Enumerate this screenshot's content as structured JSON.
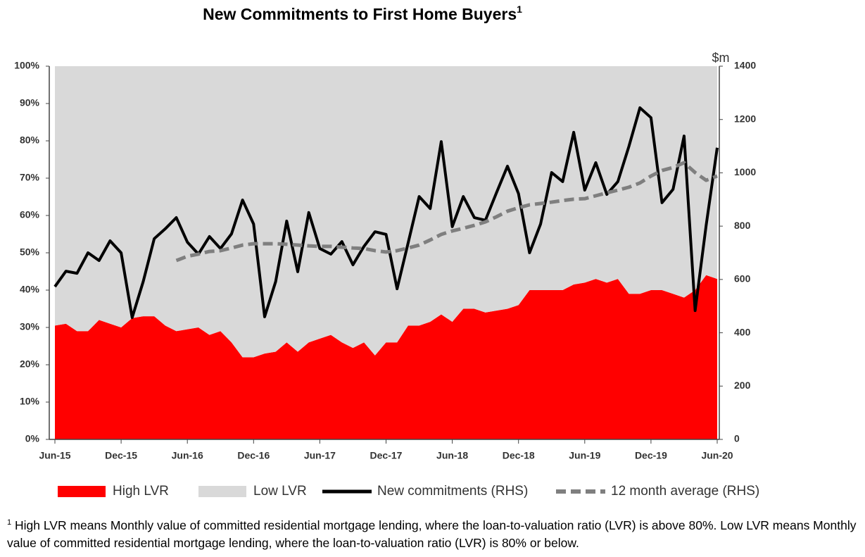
{
  "chart_data": {
    "type": "area-line",
    "title": "New Commitments to First Home Buyers",
    "title_note_mark": "1",
    "y2_label": "$m",
    "categories": [
      "Jun-15",
      null,
      null,
      null,
      null,
      null,
      "Dec-15",
      null,
      null,
      null,
      null,
      null,
      "Jun-16",
      null,
      null,
      null,
      null,
      null,
      "Dec-16",
      null,
      null,
      null,
      null,
      null,
      "Jun-17",
      null,
      null,
      null,
      null,
      null,
      "Dec-17",
      null,
      null,
      null,
      null,
      null,
      "Jun-18",
      null,
      null,
      null,
      null,
      null,
      "Dec-18",
      null,
      null,
      null,
      null,
      null,
      "Jun-19",
      null,
      null,
      null,
      null,
      null,
      "Dec-19",
      null,
      null,
      null,
      null,
      null,
      "Jun-20"
    ],
    "series": [
      {
        "name": "High LVR",
        "kind": "area",
        "color": "#ff0000",
        "values": [
          30.5,
          31,
          29,
          29,
          32,
          31,
          30,
          32.5,
          33,
          33,
          30.5,
          29,
          29.5,
          30,
          28,
          29,
          26,
          22,
          22,
          23,
          23.5,
          26,
          23.5,
          26,
          27,
          28,
          26,
          24.5,
          26,
          22.5,
          26,
          26,
          30.5,
          30.5,
          31.5,
          33.5,
          31.5,
          35,
          35,
          34,
          34.5,
          35,
          36,
          40,
          40,
          40,
          40,
          41.5,
          42,
          43,
          42,
          43,
          39,
          39,
          40,
          40,
          39,
          38,
          40,
          44,
          43
        ]
      },
      {
        "name": "Low LVR",
        "kind": "area",
        "color": "#d9d9d9",
        "values": [
          69.5,
          69,
          71,
          71,
          68,
          69,
          70,
          67.5,
          67,
          67,
          69.5,
          71,
          70.5,
          70,
          72,
          71,
          74,
          78,
          78,
          77,
          76.5,
          74,
          76.5,
          74,
          73,
          72,
          74,
          75.5,
          74,
          77.5,
          74,
          74,
          69.5,
          69.5,
          68.5,
          66.5,
          68.5,
          65,
          65,
          66,
          65.5,
          65,
          64,
          60,
          60,
          60,
          60,
          58.5,
          58,
          57,
          58,
          57,
          61,
          61,
          60,
          60,
          61,
          62,
          60,
          56,
          57
        ]
      },
      {
        "name": "New commitments (RHS)",
        "kind": "line",
        "axis": "y2",
        "color": "#000000",
        "values": [
          573,
          631,
          623,
          700,
          671,
          745,
          700,
          457,
          592,
          753,
          790,
          832,
          740,
          695,
          761,
          716,
          771,
          898,
          808,
          460,
          592,
          819,
          629,
          851,
          716,
          695,
          742,
          655,
          724,
          779,
          769,
          565,
          737,
          911,
          866,
          1117,
          798,
          911,
          832,
          822,
          925,
          1025,
          922,
          700,
          808,
          1001,
          967,
          1152,
          935,
          1038,
          919,
          967,
          1099,
          1244,
          1207,
          888,
          938,
          1138,
          483,
          803,
          1094
        ]
      },
      {
        "name": "12 month average (RHS)",
        "kind": "dashed",
        "axis": "y2",
        "color": "#7f7f7f",
        "values": [
          null,
          null,
          null,
          null,
          null,
          null,
          null,
          null,
          null,
          null,
          null,
          671,
          687,
          695,
          705,
          708,
          718,
          729,
          734,
          734,
          734,
          732,
          729,
          726,
          724,
          724,
          721,
          718,
          716,
          708,
          703,
          708,
          718,
          729,
          748,
          769,
          782,
          792,
          803,
          816,
          835,
          856,
          869,
          880,
          885,
          890,
          896,
          901,
          903,
          914,
          925,
          935,
          946,
          962,
          988,
          1009,
          1020,
          1038,
          1001,
          972,
          988
        ]
      }
    ],
    "ylim": [
      0,
      100
    ],
    "yticks": [
      {
        "value": 0,
        "label": "0%"
      },
      {
        "value": 10,
        "label": "10%"
      },
      {
        "value": 20,
        "label": "20%"
      },
      {
        "value": 30,
        "label": "30%"
      },
      {
        "value": 40,
        "label": "40%"
      },
      {
        "value": 50,
        "label": "50%"
      },
      {
        "value": 60,
        "label": "60%"
      },
      {
        "value": 70,
        "label": "70%"
      },
      {
        "value": 80,
        "label": "80%"
      },
      {
        "value": 90,
        "label": "90%"
      },
      {
        "value": 100,
        "label": "100%"
      }
    ],
    "y2lim": [
      0,
      1400
    ],
    "y2ticks": [
      0,
      200,
      400,
      600,
      800,
      1000,
      1200,
      1400
    ],
    "footnote_mark": "1",
    "footnote": "High LVR means Monthly value of committed residential mortgage lending, where the loan-to-valuation ratio (LVR) is above 80%. Low LVR means Monthly value of committed residential mortgage lending, where the loan-to-valuation ratio (LVR) is 80% or below."
  }
}
